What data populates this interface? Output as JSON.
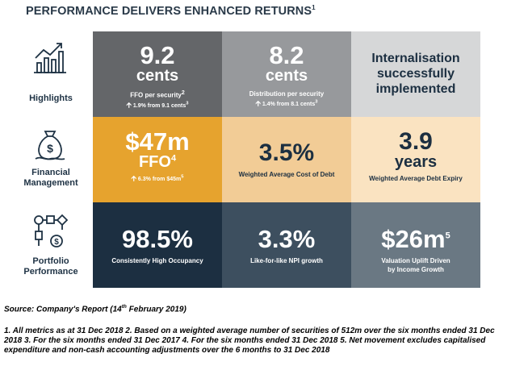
{
  "title": "PERFORMANCE DELIVERS ENHANCED RETURNS",
  "title_sup": "1",
  "rows": [
    {
      "label": "Highlights",
      "icon": "bar-chart-growth-icon"
    },
    {
      "label": "Financial Management",
      "label_line1": "Financial",
      "label_line2": "Management",
      "icon": "money-bag-icon"
    },
    {
      "label": "Portfolio Performance",
      "label_line1": "Portfolio",
      "label_line2": "Performance",
      "icon": "flowchart-icon"
    }
  ],
  "tiles": {
    "ffo_cents": {
      "value": "9.2",
      "unit": "cents",
      "caption": "FFO per security",
      "caption_sup": "2",
      "change": "1.9% from 9.1 cents",
      "change_sup": "3",
      "color": "#646669"
    },
    "distribution": {
      "value": "8.2",
      "unit": "cents",
      "caption": "Distribution per security",
      "change": "1.4% from 8.1 cents",
      "change_sup": "3",
      "color": "#97999c"
    },
    "internalisation": {
      "line1": "Internalisation",
      "line2": "successfully",
      "line3": "implemented",
      "color": "#d6d7d8"
    },
    "ffo_m": {
      "value": "$47m",
      "unit": "FFO",
      "unit_sup": "4",
      "change": "6.3% from $45m",
      "change_sup": "5",
      "color": "#e6a32e"
    },
    "cost_of_debt": {
      "value": "3.5%",
      "caption": "Weighted Average Cost of Debt",
      "color": "#f2cc96"
    },
    "debt_expiry": {
      "value": "3.9",
      "unit": "years",
      "caption": "Weighted Average Debt Expiry",
      "color": "#fae3c1"
    },
    "occupancy": {
      "value": "98.5%",
      "caption": "Consistently High Occupancy",
      "color": "#1c2f41"
    },
    "npi_growth": {
      "value": "3.3%",
      "caption": "Like-for-like NPI growth",
      "color": "#3d4f5f"
    },
    "valuation": {
      "value": "$26m",
      "value_sup": "5",
      "caption_line1": "Valuation Uplift Driven",
      "caption_line2": "by Income Growth",
      "color": "#6a7883"
    }
  },
  "source": {
    "prefix": "Source: Company's Report (14",
    "sup": "th",
    "suffix": " February 2019)"
  },
  "footnotes": "1. All metrics as at 31 Dec 2018 2. Based on a weighted average number of securities of 512m over the six months ended 31 Dec 2018 3. For the six months ended 31 Dec 2017 4. For the six months ended 31 Dec 2018 5. Net movement excludes capitalised expenditure and non-cash accounting adjustments over the 6 months to 31 Dec 2018"
}
